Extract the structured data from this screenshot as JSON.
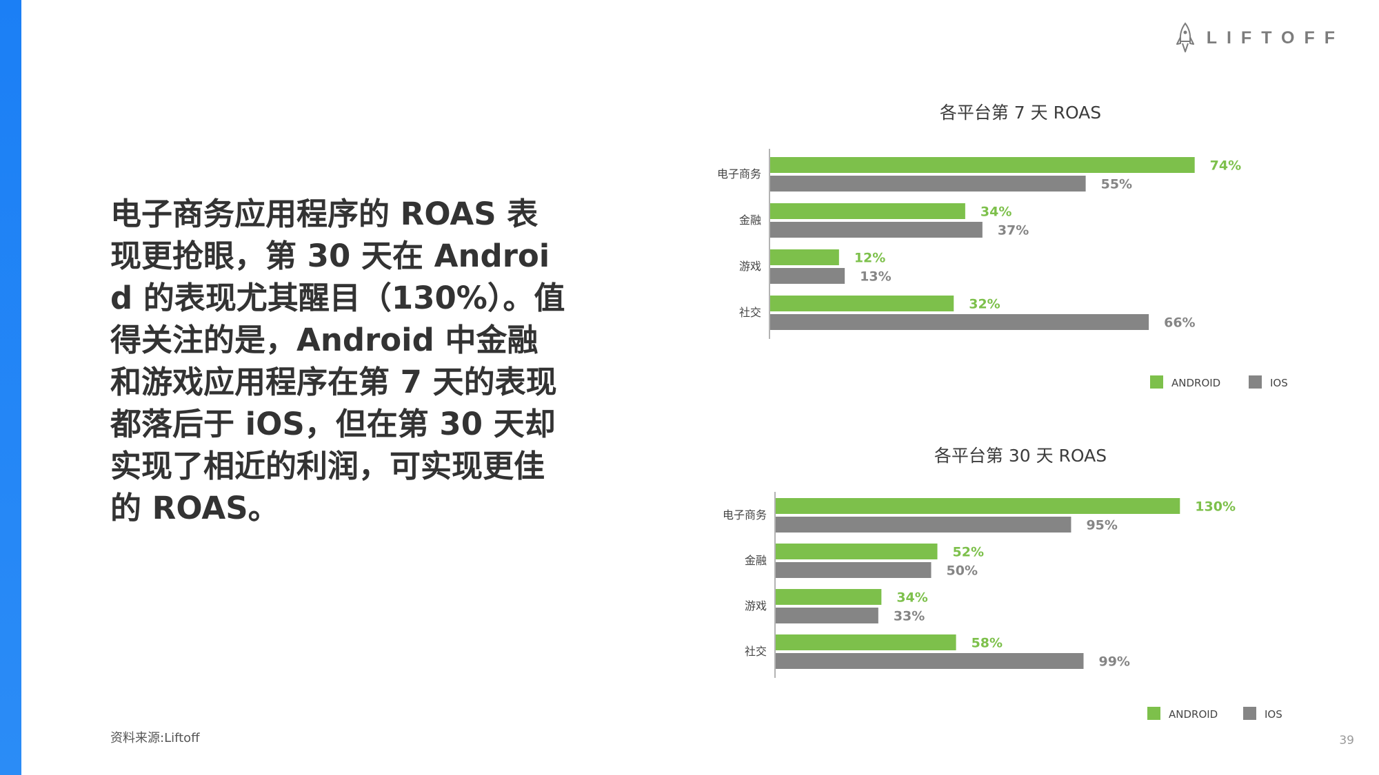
{
  "brand": {
    "name": "LIFTOFF"
  },
  "headline": "电子商务应用程序的 ROAS 表现更抢眼，第 30 天在 Android 的表现尤其醒目（130%）。值得关注的是，Android 中金融和游戏应用程序在第 7 天的表现都落后于 iOS，但在第 30 天却实现了相近的利润，可实现更佳的 ROAS。",
  "source": "资料来源:Liftoff",
  "page_number": "39",
  "colors": {
    "accent_blue": "#1b7ff5",
    "android": "#7dc04b",
    "ios": "#858585",
    "axis": "#9a9a9a"
  },
  "chart_data": [
    {
      "type": "bar",
      "orientation": "horizontal",
      "title": "各平台第 7 天 ROAS",
      "categories": [
        "电子商务",
        "金融",
        "游戏",
        "社交"
      ],
      "series": [
        {
          "name": "ANDROID",
          "values": [
            74,
            34,
            12,
            32
          ],
          "labels": [
            "74%",
            "34%",
            "12%",
            "32%"
          ]
        },
        {
          "name": "IOS",
          "values": [
            55,
            37,
            13,
            66
          ],
          "labels": [
            "55%",
            "37%",
            "13%",
            "66%"
          ]
        }
      ],
      "unit": "%",
      "grid": false,
      "legend": "bottom-right"
    },
    {
      "type": "bar",
      "orientation": "horizontal",
      "title": "各平台第 30 天 ROAS",
      "categories": [
        "电子商务",
        "金融",
        "游戏",
        "社交"
      ],
      "series": [
        {
          "name": "ANDROID",
          "values": [
            130,
            52,
            34,
            58
          ],
          "labels": [
            "130%",
            "52%",
            "34%",
            "58%"
          ]
        },
        {
          "name": "IOS",
          "values": [
            95,
            50,
            33,
            99
          ],
          "labels": [
            "95%",
            "50%",
            "33%",
            "99%"
          ]
        }
      ],
      "unit": "%",
      "grid": false,
      "legend": "bottom-right"
    }
  ]
}
